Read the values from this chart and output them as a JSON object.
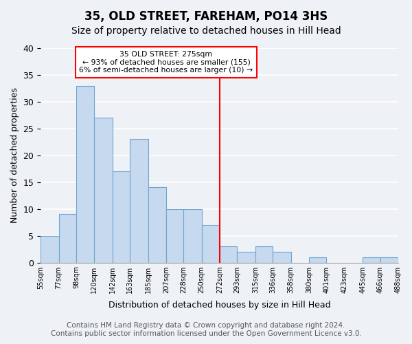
{
  "title": "35, OLD STREET, FAREHAM, PO14 3HS",
  "subtitle": "Size of property relative to detached houses in Hill Head",
  "xlabel": "Distribution of detached houses by size in Hill Head",
  "ylabel": "Number of detached properties",
  "bin_edges": [
    55,
    77,
    98,
    120,
    142,
    163,
    185,
    207,
    228,
    250,
    272,
    293,
    315,
    336,
    358,
    380,
    401,
    423,
    445,
    466,
    488
  ],
  "bin_labels": [
    "55sqm",
    "77sqm",
    "98sqm",
    "120sqm",
    "142sqm",
    "163sqm",
    "185sqm",
    "207sqm",
    "228sqm",
    "250sqm",
    "272sqm",
    "293sqm",
    "315sqm",
    "336sqm",
    "358sqm",
    "380sqm",
    "401sqm",
    "423sqm",
    "445sqm",
    "466sqm",
    "488sqm"
  ],
  "counts": [
    5,
    9,
    33,
    27,
    17,
    23,
    14,
    10,
    10,
    7,
    3,
    2,
    3,
    2,
    0,
    1,
    0,
    0,
    1,
    1
  ],
  "bar_color": "#c6d9ee",
  "bar_edge_color": "#6ea6d0",
  "vline_x": 272,
  "vline_color": "red",
  "annotation_title": "35 OLD STREET: 275sqm",
  "annotation_line1": "← 93% of detached houses are smaller (155)",
  "annotation_line2": "6% of semi-detached houses are larger (10) →",
  "annotation_box_color": "white",
  "annotation_box_edge": "red",
  "ylim": [
    0,
    40
  ],
  "yticks": [
    0,
    5,
    10,
    15,
    20,
    25,
    30,
    35,
    40
  ],
  "background_color": "#eef2f7",
  "footer_line1": "Contains HM Land Registry data © Crown copyright and database right 2024.",
  "footer_line2": "Contains public sector information licensed under the Open Government Licence v3.0.",
  "grid_color": "white",
  "title_fontsize": 12,
  "subtitle_fontsize": 10,
  "footer_fontsize": 7.5
}
